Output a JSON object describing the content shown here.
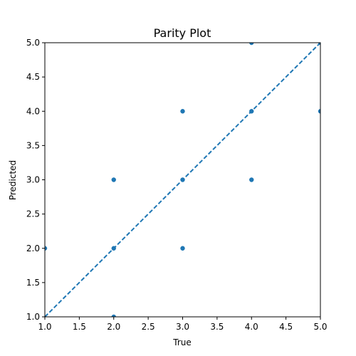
{
  "chart_data": {
    "type": "scatter",
    "title": "Parity Plot",
    "xlabel": "True",
    "ylabel": "Predicted",
    "xlim": [
      1.0,
      5.0
    ],
    "ylim": [
      1.0,
      5.0
    ],
    "xticks": [
      "1.0",
      "1.5",
      "2.0",
      "2.5",
      "3.0",
      "3.5",
      "4.0",
      "4.5",
      "5.0"
    ],
    "yticks": [
      "1.0",
      "1.5",
      "2.0",
      "2.5",
      "3.0",
      "3.5",
      "4.0",
      "4.5",
      "5.0"
    ],
    "grid": false,
    "point_color": "#1f77b4",
    "line_color": "#1f77b4",
    "reference_line": {
      "style": "dashed",
      "x": [
        1.0,
        5.0
      ],
      "y": [
        1.0,
        5.0
      ]
    },
    "points": [
      {
        "x": 1,
        "y": 2
      },
      {
        "x": 2,
        "y": 1
      },
      {
        "x": 2,
        "y": 2
      },
      {
        "x": 2,
        "y": 3
      },
      {
        "x": 3,
        "y": 2
      },
      {
        "x": 3,
        "y": 3
      },
      {
        "x": 3,
        "y": 4
      },
      {
        "x": 4,
        "y": 3
      },
      {
        "x": 4,
        "y": 4
      },
      {
        "x": 4,
        "y": 5
      },
      {
        "x": 5,
        "y": 4
      },
      {
        "x": 5,
        "y": 5
      }
    ]
  }
}
